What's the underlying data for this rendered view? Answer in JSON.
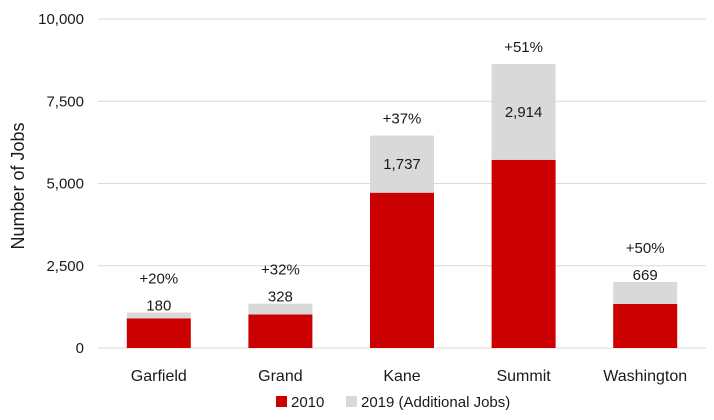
{
  "chart_data": {
    "type": "bar",
    "stacked": true,
    "categories": [
      "Garfield",
      "Grand",
      "Kane",
      "Summit",
      "Washington"
    ],
    "series": [
      {
        "name": "2010",
        "color": "#cc0000",
        "values": [
          900,
          1020,
          4720,
          5720,
          1340
        ]
      },
      {
        "name": "2019 (Additional Jobs)",
        "color": "#d9d9d9",
        "values": [
          180,
          328,
          1737,
          2914,
          669
        ]
      }
    ],
    "additional_labels": [
      "180",
      "328",
      "1,737",
      "2,914",
      "669"
    ],
    "pct_labels": [
      "+20%",
      "+32%",
      "+37%",
      "+51%",
      "+50%"
    ],
    "ylabel": "Number of Jobs",
    "ylim": [
      0,
      10000
    ],
    "yticks": [
      0,
      2500,
      5000,
      7500,
      10000
    ],
    "ytick_labels": [
      "0",
      "2,500",
      "5,000",
      "7,500",
      "10,000"
    ],
    "grid": true,
    "legend_position": "bottom"
  }
}
